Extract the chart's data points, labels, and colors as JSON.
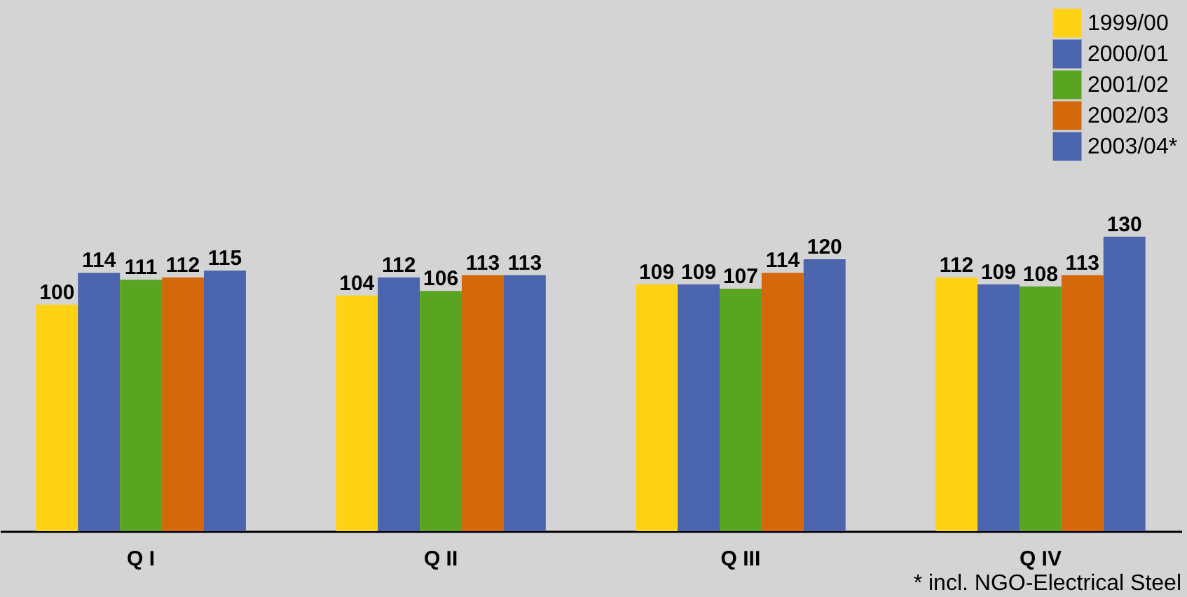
{
  "chart_data": {
    "type": "bar",
    "categories": [
      "Q I",
      "Q II",
      "Q III",
      "Q IV"
    ],
    "series": [
      {
        "name": "1999/00",
        "color": "#ffd314",
        "values": [
          100,
          104,
          109,
          112
        ]
      },
      {
        "name": "2000/01",
        "color": "#4a64ae",
        "values": [
          114,
          112,
          109,
          109
        ]
      },
      {
        "name": "2001/02",
        "color": "#59a420",
        "values": [
          111,
          106,
          107,
          108
        ]
      },
      {
        "name": "2002/03",
        "color": "#d4680a",
        "values": [
          112,
          113,
          114,
          113
        ]
      },
      {
        "name": "2003/04*",
        "color": "#4a64ae",
        "values": [
          115,
          113,
          120,
          130
        ]
      }
    ],
    "data_labels": true,
    "legend": "top right",
    "grid": false,
    "ylim": [
      0,
      232
    ],
    "annotations": [
      "* incl. NGO-Electrical Steel"
    ]
  }
}
